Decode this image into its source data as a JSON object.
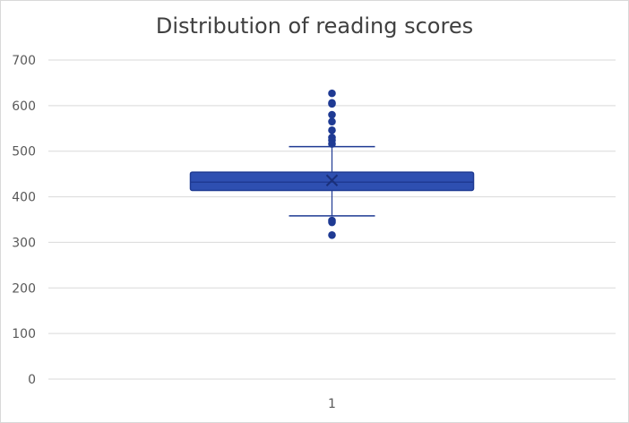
{
  "chart_data": {
    "type": "box",
    "title": "Distribution of reading scores",
    "categories": [
      "1"
    ],
    "y_ticks": [
      "0",
      "100",
      "200",
      "300",
      "400",
      "500",
      "600",
      "700"
    ],
    "ylim": [
      0,
      700
    ],
    "grid": true,
    "legend": "none",
    "box": {
      "min": 358,
      "q1": 414,
      "median": 432,
      "mean": 436,
      "q3": 454,
      "max": 510
    },
    "outliers": [
      627,
      606,
      604,
      580,
      565,
      546,
      530,
      524,
      516,
      348,
      344,
      316
    ],
    "colors": {
      "fill": "#2e4fb1",
      "stroke": "#1f3a93",
      "grid": "#d9d9d9",
      "axis_text": "#595959"
    }
  }
}
